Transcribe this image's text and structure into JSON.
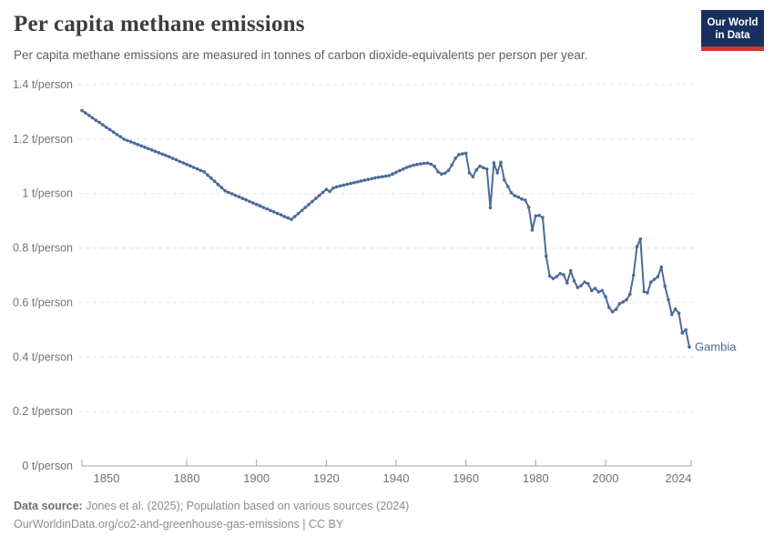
{
  "header": {
    "title": "Per capita methane emissions",
    "subtitle": "Per capita methane emissions are measured in tonnes of carbon dioxide-equivalents per person per year.",
    "logo": {
      "line1": "Our World",
      "line2": "in Data"
    }
  },
  "footer": {
    "source_label": "Data source:",
    "source_text": " Jones et al. (2025); Population based on various sources (2024)",
    "citation_text": "OurWorldinData.org/co2-and-greenhouse-gas-emissions | CC BY"
  },
  "colors": {
    "series": "#4c6a9c",
    "grid": "#e2e2e2",
    "axis": "#a3a3a3",
    "tick_text": "#737373",
    "logo_bg": "#18305f",
    "logo_accent": "#d0342c"
  },
  "chart_data": {
    "type": "line",
    "title": "Per capita methane emissions",
    "unit": "t/person",
    "end_label": "Gambia",
    "xlim": [
      1850,
      2024
    ],
    "ylim": [
      0,
      1.4
    ],
    "grid": true,
    "legend": "end-of-line-label",
    "x_ticks": [
      1850,
      1880,
      1900,
      1920,
      1940,
      1960,
      1980,
      2000,
      2024
    ],
    "y_ticks": [
      {
        "v": 0.0,
        "label": "0 t/person"
      },
      {
        "v": 0.2,
        "label": "0.2 t/person"
      },
      {
        "v": 0.4,
        "label": "0.4 t/person"
      },
      {
        "v": 0.6,
        "label": "0.6 t/person"
      },
      {
        "v": 0.8,
        "label": "0.8 t/person"
      },
      {
        "v": 1.0,
        "label": "1 t/person"
      },
      {
        "v": 1.2,
        "label": "1.2 t/person"
      },
      {
        "v": 1.4,
        "label": "1.4 t/person"
      }
    ],
    "series": [
      {
        "name": "Gambia",
        "x_start": 1850,
        "x_step": 1,
        "values": [
          1.305,
          1.296,
          1.287,
          1.278,
          1.269,
          1.261,
          1.252,
          1.243,
          1.235,
          1.226,
          1.217,
          1.209,
          1.2,
          1.195,
          1.19,
          1.185,
          1.18,
          1.175,
          1.17,
          1.165,
          1.16,
          1.155,
          1.15,
          1.145,
          1.14,
          1.135,
          1.129,
          1.124,
          1.118,
          1.113,
          1.107,
          1.102,
          1.096,
          1.091,
          1.085,
          1.08,
          1.068,
          1.057,
          1.045,
          1.033,
          1.022,
          1.01,
          1.004,
          0.999,
          0.993,
          0.988,
          0.982,
          0.977,
          0.971,
          0.966,
          0.96,
          0.955,
          0.949,
          0.944,
          0.938,
          0.933,
          0.927,
          0.922,
          0.916,
          0.911,
          0.905,
          0.916,
          0.927,
          0.938,
          0.949,
          0.96,
          0.971,
          0.982,
          0.993,
          1.004,
          1.015,
          1.008,
          1.02,
          1.025,
          1.028,
          1.031,
          1.034,
          1.037,
          1.04,
          1.043,
          1.046,
          1.049,
          1.052,
          1.055,
          1.058,
          1.06,
          1.062,
          1.064,
          1.066,
          1.072,
          1.078,
          1.084,
          1.09,
          1.096,
          1.1,
          1.104,
          1.107,
          1.109,
          1.111,
          1.112,
          1.108,
          1.1,
          1.08,
          1.072,
          1.075,
          1.085,
          1.105,
          1.13,
          1.143,
          1.146,
          1.148,
          1.076,
          1.062,
          1.087,
          1.101,
          1.095,
          1.09,
          0.948,
          1.113,
          1.076,
          1.115,
          1.05,
          1.026,
          1.003,
          0.992,
          0.987,
          0.98,
          0.976,
          0.95,
          0.866,
          0.918,
          0.92,
          0.912,
          0.77,
          0.697,
          0.688,
          0.695,
          0.706,
          0.702,
          0.672,
          0.717,
          0.68,
          0.655,
          0.662,
          0.675,
          0.669,
          0.644,
          0.652,
          0.639,
          0.644,
          0.621,
          0.582,
          0.566,
          0.575,
          0.595,
          0.602,
          0.61,
          0.63,
          0.7,
          0.805,
          0.833,
          0.64,
          0.636,
          0.675,
          0.685,
          0.695,
          0.73,
          0.66,
          0.61,
          0.556,
          0.576,
          0.561,
          0.488,
          0.5,
          0.437
        ]
      }
    ]
  }
}
